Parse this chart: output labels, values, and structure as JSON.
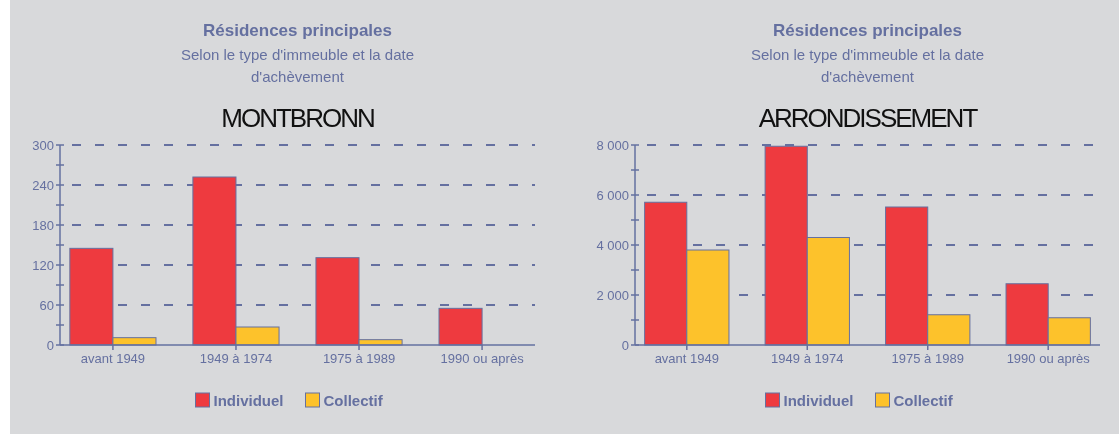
{
  "chart_data": [
    {
      "type": "bar",
      "title": "Résidences principales",
      "subtitle": "Selon le type d'immeuble et la date d'achèvement",
      "annotations": [
        "MONTBRONN"
      ],
      "categories": [
        "avant 1949",
        "1949 à 1974",
        "1975 à 1989",
        "1990 ou après"
      ],
      "series": [
        {
          "name": "Individuel",
          "color": "#ee3a3f",
          "values": [
            145,
            252,
            131,
            55
          ]
        },
        {
          "name": "Collectif",
          "color": "#fdc22b",
          "values": [
            11,
            27,
            8,
            0
          ]
        }
      ],
      "ylim": [
        0,
        300
      ],
      "yticks": [
        0,
        {
          "value": 30,
          "label": null
        },
        60,
        {
          "value": 90,
          "label": null
        },
        120,
        {
          "value": 150,
          "label": null
        },
        180,
        {
          "value": 210,
          "label": null
        },
        240,
        {
          "value": 270,
          "label": null
        },
        300
      ],
      "grid": "y",
      "legend": "bottom"
    },
    {
      "type": "bar",
      "title": "Résidences principales",
      "subtitle": "Selon le type d'immeuble et la date d'achèvement",
      "annotations": [
        "ARRONDISSEMENT"
      ],
      "categories": [
        "avant 1949",
        "1949 à 1974",
        "1975 à 1989",
        "1990 ou après"
      ],
      "series": [
        {
          "name": "Individuel",
          "color": "#ee3a3f",
          "values": [
            5710,
            7950,
            5520,
            2450
          ]
        },
        {
          "name": "Collectif",
          "color": "#fdc22b",
          "values": [
            3800,
            4300,
            1210,
            1090
          ]
        }
      ],
      "ylim": [
        0,
        8000
      ],
      "yticks": [
        {
          "value": 0,
          "label": "0"
        },
        {
          "value": 1000,
          "label": null
        },
        {
          "value": 2000,
          "label": "2 000"
        },
        {
          "value": 3000,
          "label": null
        },
        {
          "value": 4000,
          "label": "4 000"
        },
        {
          "value": 5000,
          "label": null
        },
        {
          "value": 6000,
          "label": "6 000"
        },
        {
          "value": 7000,
          "label": null
        },
        {
          "value": 8000,
          "label": "8 000"
        }
      ],
      "grid": "y",
      "legend": "bottom"
    }
  ]
}
